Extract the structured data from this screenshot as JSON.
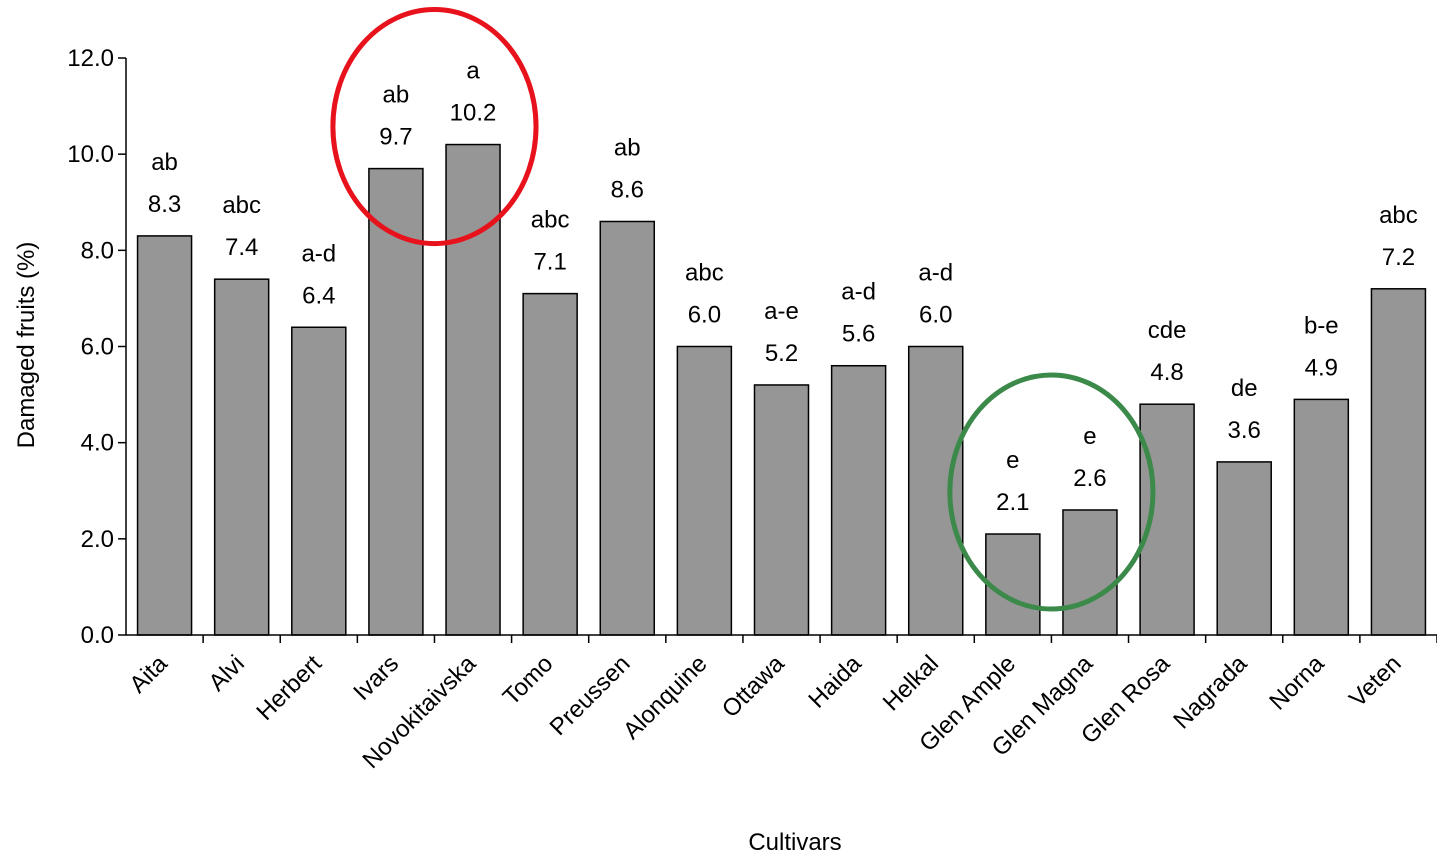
{
  "chart_data": {
    "type": "bar",
    "xlabel": "Cultivars",
    "ylabel": "Damaged fruits (%)",
    "ylim": [
      0,
      12
    ],
    "yticks": [
      "0.0",
      "2.0",
      "4.0",
      "6.0",
      "8.0",
      "10.0",
      "12.0"
    ],
    "categories": [
      "Aita",
      "Alvi",
      "Herbert",
      "Ivars",
      "Novokitaivska",
      "Tomo",
      "Preussen",
      "Alonquine",
      "Ottawa",
      "Haida",
      "Helkal",
      "Glen Ample",
      "Glen Magna",
      "Glen Rosa",
      "Nagrada",
      "Norna",
      "Veten"
    ],
    "values": [
      8.3,
      7.4,
      6.4,
      9.7,
      10.2,
      7.1,
      8.6,
      6.0,
      5.2,
      5.6,
      6.0,
      2.1,
      2.6,
      4.8,
      3.6,
      4.9,
      7.2
    ],
    "value_labels": [
      "8.3",
      "7.4",
      "6.4",
      "9.7",
      "10.2",
      "7.1",
      "8.6",
      "6.0",
      "5.2",
      "5.6",
      "6.0",
      "2.1",
      "2.6",
      "4.8",
      "3.6",
      "4.9",
      "7.2"
    ],
    "significance_letters": [
      "ab",
      "abc",
      "a-d",
      "ab",
      "a",
      "abc",
      "ab",
      "abc",
      "a-e",
      "a-d",
      "a-d",
      "e",
      "e",
      "cde",
      "de",
      "b-e",
      "abc"
    ],
    "grid": false,
    "legend": "none",
    "bar_color": "#969696",
    "highlights": [
      {
        "categories": [
          "Ivars",
          "Novokitaivska"
        ],
        "color": "#e8121c",
        "shape": "ellipse"
      },
      {
        "categories": [
          "Glen Ample",
          "Glen Magna"
        ],
        "color": "#3b8a4a",
        "shape": "ellipse"
      }
    ]
  }
}
